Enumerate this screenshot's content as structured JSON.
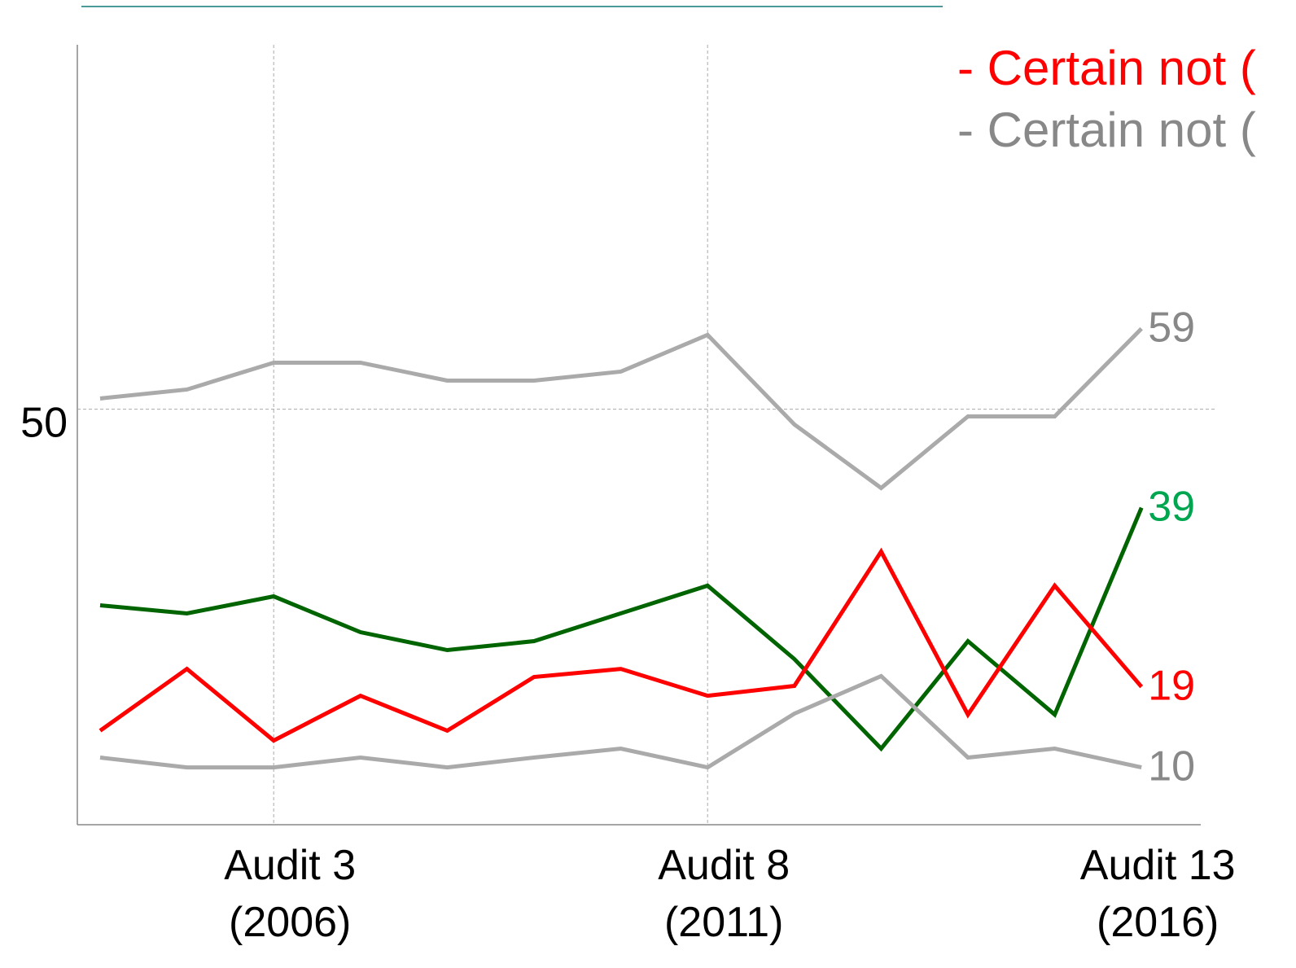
{
  "chart_data": {
    "type": "line",
    "categories": [
      null,
      null,
      "Audit 3\n(2006)",
      null,
      null,
      null,
      null,
      "Audit 8\n(2011)",
      null,
      null,
      null,
      null,
      "Audit 13\n(2016)"
    ],
    "ylim": [
      3.6,
      90.7
    ],
    "yticks": [
      50
    ],
    "grid": true,
    "series": [
      {
        "color": "#aaaaaa",
        "label_color": "#888888",
        "values": [
          51.2,
          52.2,
          55.2,
          55.2,
          53.2,
          53.2,
          54.2,
          58.3,
          48.3,
          41.2,
          49.2,
          49.2,
          59
        ]
      },
      {
        "color": "#006400",
        "label_color": "#00a64f",
        "values": [
          28.1,
          27.2,
          29.1,
          25.1,
          23.1,
          24.1,
          27.2,
          30.3,
          22.1,
          12.1,
          24.1,
          15.9,
          39
        ]
      },
      {
        "color": "#ff0000",
        "label_color": "#ff0000",
        "values": [
          14.1,
          21,
          13,
          18,
          14.1,
          20.1,
          21,
          18,
          19.1,
          34.1,
          15.9,
          30.3,
          19
        ]
      },
      {
        "color": "#aaaaaa",
        "label_color": "#888888",
        "values": [
          11.1,
          10,
          10,
          11.1,
          10,
          11.1,
          12.1,
          10,
          16,
          20.2,
          11.1,
          12.1,
          10
        ]
      }
    ],
    "annotations": [
      {
        "text": "- Certain not (",
        "color": "#ff0000"
      },
      {
        "text": "- Certain not (",
        "color": "#888888"
      }
    ]
  }
}
